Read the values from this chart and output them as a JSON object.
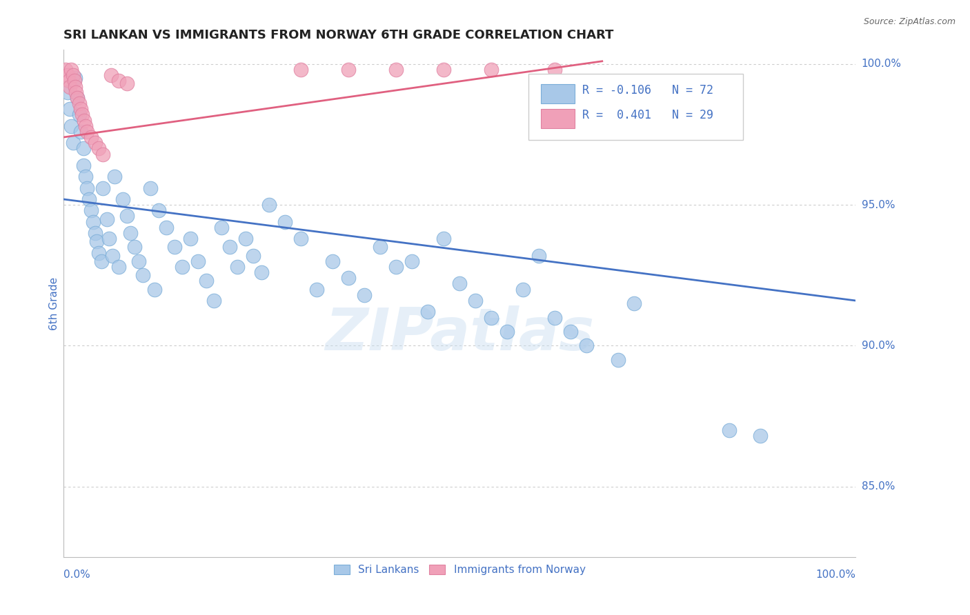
{
  "title": "SRI LANKAN VS IMMIGRANTS FROM NORWAY 6TH GRADE CORRELATION CHART",
  "source": "Source: ZipAtlas.com",
  "ylabel": "6th Grade",
  "watermark": "ZIPatlas",
  "xlim": [
    0.0,
    1.0
  ],
  "ylim": [
    0.825,
    1.005
  ],
  "yticks": [
    0.85,
    0.9,
    0.95,
    1.0
  ],
  "ytick_labels": [
    "85.0%",
    "90.0%",
    "95.0%",
    "100.0%"
  ],
  "legend_blue_r": "-0.106",
  "legend_blue_n": "72",
  "legend_pink_r": "0.401",
  "legend_pink_n": "29",
  "blue_color": "#a8c8e8",
  "pink_color": "#f0a0b8",
  "blue_line_color": "#4472c4",
  "pink_line_color": "#e06080",
  "axis_color": "#4472c4",
  "grid_color": "#cccccc",
  "blue_trend_x": [
    0.0,
    1.0
  ],
  "blue_trend_y": [
    0.952,
    0.916
  ],
  "pink_trend_x": [
    0.0,
    0.68
  ],
  "pink_trend_y": [
    0.974,
    1.001
  ],
  "blue_points": [
    [
      0.005,
      0.99
    ],
    [
      0.008,
      0.984
    ],
    [
      0.01,
      0.978
    ],
    [
      0.012,
      0.972
    ],
    [
      0.015,
      0.995
    ],
    [
      0.018,
      0.988
    ],
    [
      0.02,
      0.982
    ],
    [
      0.022,
      0.976
    ],
    [
      0.025,
      0.97
    ],
    [
      0.025,
      0.964
    ],
    [
      0.028,
      0.96
    ],
    [
      0.03,
      0.956
    ],
    [
      0.032,
      0.952
    ],
    [
      0.035,
      0.948
    ],
    [
      0.038,
      0.944
    ],
    [
      0.04,
      0.94
    ],
    [
      0.042,
      0.937
    ],
    [
      0.045,
      0.933
    ],
    [
      0.048,
      0.93
    ],
    [
      0.05,
      0.956
    ],
    [
      0.055,
      0.945
    ],
    [
      0.058,
      0.938
    ],
    [
      0.062,
      0.932
    ],
    [
      0.065,
      0.96
    ],
    [
      0.07,
      0.928
    ],
    [
      0.075,
      0.952
    ],
    [
      0.08,
      0.946
    ],
    [
      0.085,
      0.94
    ],
    [
      0.09,
      0.935
    ],
    [
      0.095,
      0.93
    ],
    [
      0.1,
      0.925
    ],
    [
      0.11,
      0.956
    ],
    [
      0.115,
      0.92
    ],
    [
      0.12,
      0.948
    ],
    [
      0.13,
      0.942
    ],
    [
      0.14,
      0.935
    ],
    [
      0.15,
      0.928
    ],
    [
      0.16,
      0.938
    ],
    [
      0.17,
      0.93
    ],
    [
      0.18,
      0.923
    ],
    [
      0.19,
      0.916
    ],
    [
      0.2,
      0.942
    ],
    [
      0.21,
      0.935
    ],
    [
      0.22,
      0.928
    ],
    [
      0.23,
      0.938
    ],
    [
      0.24,
      0.932
    ],
    [
      0.25,
      0.926
    ],
    [
      0.26,
      0.95
    ],
    [
      0.28,
      0.944
    ],
    [
      0.3,
      0.938
    ],
    [
      0.32,
      0.92
    ],
    [
      0.34,
      0.93
    ],
    [
      0.36,
      0.924
    ],
    [
      0.38,
      0.918
    ],
    [
      0.4,
      0.935
    ],
    [
      0.42,
      0.928
    ],
    [
      0.44,
      0.93
    ],
    [
      0.46,
      0.912
    ],
    [
      0.48,
      0.938
    ],
    [
      0.5,
      0.922
    ],
    [
      0.52,
      0.916
    ],
    [
      0.54,
      0.91
    ],
    [
      0.56,
      0.905
    ],
    [
      0.58,
      0.92
    ],
    [
      0.6,
      0.932
    ],
    [
      0.62,
      0.91
    ],
    [
      0.64,
      0.905
    ],
    [
      0.66,
      0.9
    ],
    [
      0.7,
      0.895
    ],
    [
      0.72,
      0.915
    ],
    [
      0.84,
      0.87
    ],
    [
      0.88,
      0.868
    ]
  ],
  "pink_points": [
    [
      0.003,
      0.998
    ],
    [
      0.005,
      0.996
    ],
    [
      0.007,
      0.994
    ],
    [
      0.008,
      0.992
    ],
    [
      0.01,
      0.998
    ],
    [
      0.012,
      0.996
    ],
    [
      0.014,
      0.994
    ],
    [
      0.015,
      0.992
    ],
    [
      0.016,
      0.99
    ],
    [
      0.018,
      0.988
    ],
    [
      0.02,
      0.986
    ],
    [
      0.022,
      0.984
    ],
    [
      0.024,
      0.982
    ],
    [
      0.026,
      0.98
    ],
    [
      0.028,
      0.978
    ],
    [
      0.03,
      0.976
    ],
    [
      0.035,
      0.974
    ],
    [
      0.04,
      0.972
    ],
    [
      0.045,
      0.97
    ],
    [
      0.05,
      0.968
    ],
    [
      0.06,
      0.996
    ],
    [
      0.07,
      0.994
    ],
    [
      0.08,
      0.993
    ],
    [
      0.3,
      0.998
    ],
    [
      0.36,
      0.998
    ],
    [
      0.42,
      0.998
    ],
    [
      0.48,
      0.998
    ],
    [
      0.54,
      0.998
    ],
    [
      0.62,
      0.998
    ]
  ]
}
